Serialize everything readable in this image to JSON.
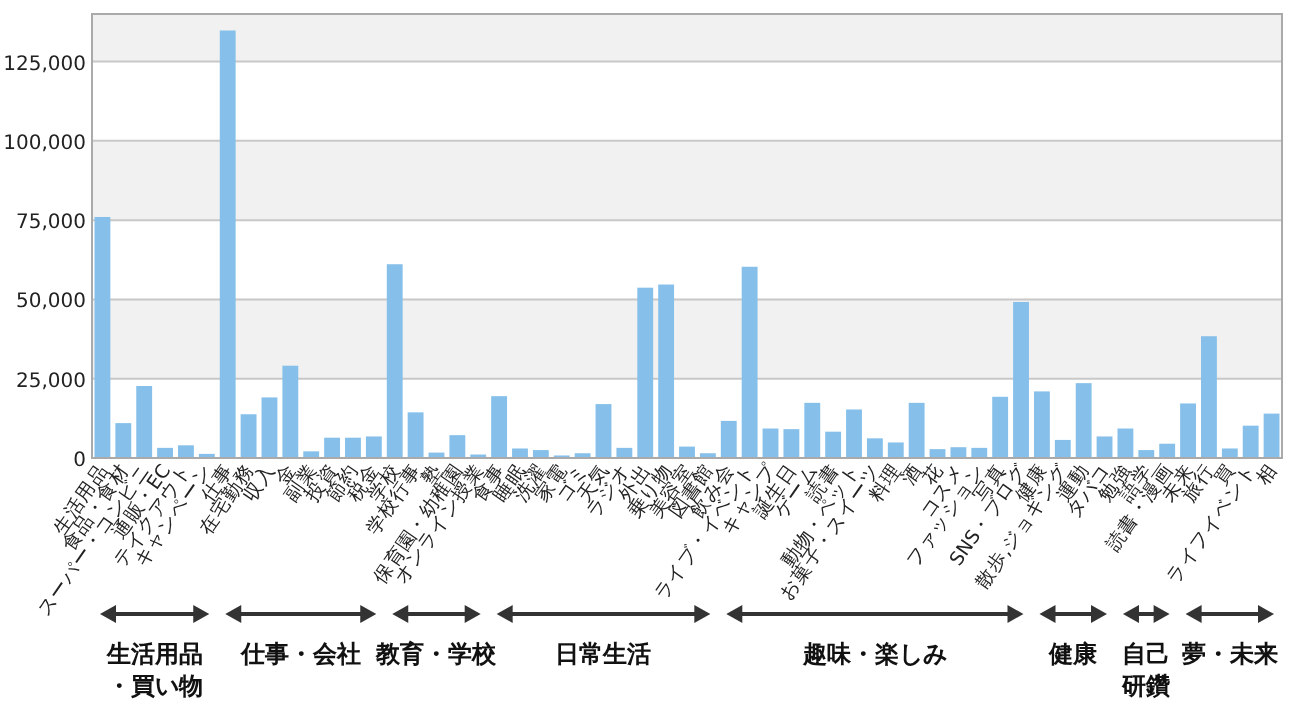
{
  "chart_data": {
    "type": "bar",
    "categories": [
      "生活用品",
      "食品・食材",
      "スーパー・コンビニ",
      "通販・EC",
      "テイクアウト",
      "キャンペーン",
      "仕事",
      "在宅勤務",
      "収入",
      "金",
      "副業",
      "投資",
      "節約",
      "税金",
      "学校",
      "学校行事",
      "塾",
      "保育園・幼稚園",
      "オンライン授業",
      "食事",
      "睡眠",
      "洗濯",
      "家電",
      "ゴミ",
      "天気",
      "ラジオ",
      "外出",
      "乗り物",
      "美容室",
      "図書館",
      "飲み会",
      "ライブ・イベント",
      "キャンプ",
      "誕生日",
      "ゲーム",
      "読書",
      "動物・ペット",
      "お菓子・スイーツ",
      "料理",
      "酒",
      "花",
      "コスメ",
      "ファッション",
      "写真",
      "SNS・ブログ",
      "健康",
      "散歩,ジョギング",
      "運動",
      "タバコ",
      "勉強",
      "語学",
      "読書・漫画",
      "未来",
      "旅行",
      "買",
      "ライフイベント",
      "相"
    ],
    "values": [
      76000,
      11000,
      22700,
      3200,
      4000,
      1300,
      134800,
      13800,
      19100,
      29100,
      2100,
      6400,
      6400,
      6800,
      61100,
      14400,
      1700,
      7200,
      1100,
      19500,
      3000,
      2500,
      800,
      1500,
      17000,
      3200,
      53700,
      54700,
      3600,
      1500,
      11700,
      60300,
      9300,
      9100,
      17400,
      8300,
      15300,
      6200,
      4900,
      17400,
      2800,
      3400,
      3200,
      19300,
      49200,
      21000,
      5700,
      23600,
      6800,
      9300,
      2500,
      4500,
      17200,
      38400,
      3000,
      10200,
      14000
    ],
    "color": "#86c0ea",
    "ylim": [
      0,
      140000
    ],
    "yticks": [
      0,
      {
        "value": 25000,
        "label": "25,000"
      },
      {
        "value": 50000,
        "label": "50,000"
      },
      {
        "value": 75000,
        "label": "75,000"
      },
      {
        "value": 100000,
        "label": "100,000"
      },
      {
        "value": 125000,
        "label": "125,000"
      }
    ],
    "grid": "y",
    "annotations": [
      "生活用品・買い物",
      "仕事・会社",
      "教育・学校",
      "日常生活",
      "趣味・楽しみ",
      "健康",
      "自己研鑽",
      "夢・未来"
    ]
  }
}
